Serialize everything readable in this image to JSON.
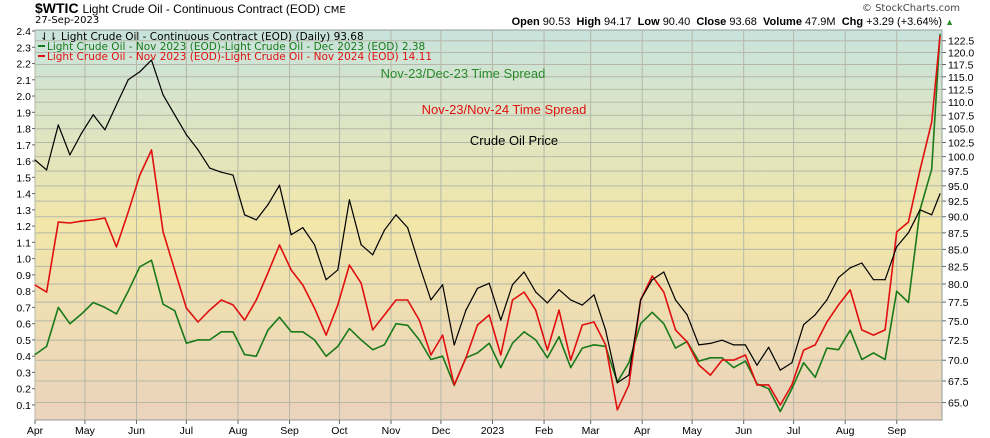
{
  "header": {
    "symbol": "$WTIC",
    "description": "Light Crude Oil - Continuous Contract (EOD)",
    "exchange": "CME",
    "date": "27-Sep-2023",
    "brand": "© StockCharts.com",
    "quote": {
      "open_label": "Open",
      "open": "90.53",
      "high_label": "High",
      "high": "94.17",
      "low_label": "Low",
      "low": "90.40",
      "close_label": "Close",
      "close": "93.68",
      "volume_label": "Volume",
      "volume": "47.9M",
      "chg_label": "Chg",
      "chg": "+3.29 (+3.64%)",
      "chg_icon": "triangle-up-icon"
    }
  },
  "legend": [
    {
      "text": "Light Crude Oil - Continuous Contract (EOD) (Daily) 93.68",
      "color": "#000000",
      "icon": "ohlc-bar-icon"
    },
    {
      "text": "Light Crude Oil - Nov 2023 (EOD)-Light Crude Oil - Dec 2023 (EOD) 2.38",
      "color": "#1a7a1a",
      "icon": "line-swatch-icon"
    },
    {
      "text": "Light Crude Oil - Nov 2023 (EOD)-Light Crude Oil - Nov 2024 (EOD) 14.11",
      "color": "#e01010",
      "icon": "line-swatch-icon"
    }
  ],
  "annotations": [
    {
      "text": "Nov-23/Dec-23 Time Spread",
      "color": "#2a8a2a"
    },
    {
      "text": "Nov-23/Nov-24 Time Spread",
      "color": "#e01010"
    },
    {
      "text": "Crude Oil Price",
      "color": "#000000"
    }
  ],
  "chart_data": {
    "type": "line",
    "xlim": [
      "2022-04-01",
      "2023-09-27"
    ],
    "x_tick_labels": [
      {
        "label": "Apr",
        "date": "2022-04-01"
      },
      {
        "label": "May",
        "date": "2022-05-01"
      },
      {
        "label": "Jun",
        "date": "2022-06-01"
      },
      {
        "label": "Jul",
        "date": "2022-07-01"
      },
      {
        "label": "Aug",
        "date": "2022-08-01"
      },
      {
        "label": "Sep",
        "date": "2022-09-01"
      },
      {
        "label": "Oct",
        "date": "2022-10-01"
      },
      {
        "label": "Nov",
        "date": "2022-11-01"
      },
      {
        "label": "Dec",
        "date": "2022-12-01"
      },
      {
        "label": "2023",
        "date": "2023-01-01",
        "bold": true
      },
      {
        "label": "Feb",
        "date": "2023-02-01"
      },
      {
        "label": "Mar",
        "date": "2023-03-01"
      },
      {
        "label": "Apr",
        "date": "2023-04-01"
      },
      {
        "label": "May",
        "date": "2023-05-01"
      },
      {
        "label": "Jun",
        "date": "2023-06-01"
      },
      {
        "label": "Jul",
        "date": "2023-07-01"
      },
      {
        "label": "Aug",
        "date": "2023-08-01"
      },
      {
        "label": "Sep",
        "date": "2023-09-01"
      }
    ],
    "left_axis": {
      "scale": "linear",
      "ylim": [
        0.0,
        2.4
      ],
      "ticks": [
        "0.1",
        "0.2",
        "0.3",
        "0.4",
        "0.5",
        "0.6",
        "0.7",
        "0.8",
        "0.9",
        "1.0",
        "1.1",
        "1.2",
        "1.3",
        "1.4",
        "1.5",
        "1.6",
        "1.7",
        "1.8",
        "1.9",
        "2.0",
        "2.1",
        "2.2",
        "2.3",
        "2.4"
      ]
    },
    "right_axis": {
      "scale": "log",
      "ylim": [
        63.0,
        124.0
      ],
      "ticks": [
        "65.0",
        "67.5",
        "70.0",
        "72.5",
        "75.0",
        "77.5",
        "80.0",
        "82.5",
        "85.0",
        "87.5",
        "90.0",
        "92.5",
        "95.0",
        "97.5",
        "100.0",
        "102.5",
        "105.0",
        "107.5",
        "110.0",
        "112.5",
        "115.0",
        "117.5",
        "120.0",
        "122.5"
      ]
    },
    "grid": true,
    "legend_position": "top-left",
    "dates": [
      "2022-04-01",
      "2022-04-08",
      "2022-04-15",
      "2022-04-22",
      "2022-04-29",
      "2022-05-06",
      "2022-05-13",
      "2022-05-20",
      "2022-05-27",
      "2022-06-03",
      "2022-06-10",
      "2022-06-17",
      "2022-06-24",
      "2022-07-01",
      "2022-07-08",
      "2022-07-15",
      "2022-07-22",
      "2022-07-29",
      "2022-08-05",
      "2022-08-12",
      "2022-08-19",
      "2022-08-26",
      "2022-09-02",
      "2022-09-09",
      "2022-09-16",
      "2022-09-23",
      "2022-09-30",
      "2022-10-07",
      "2022-10-14",
      "2022-10-21",
      "2022-10-28",
      "2022-11-04",
      "2022-11-11",
      "2022-11-18",
      "2022-11-25",
      "2022-12-02",
      "2022-12-09",
      "2022-12-16",
      "2022-12-23",
      "2022-12-30",
      "2023-01-06",
      "2023-01-13",
      "2023-01-20",
      "2023-01-27",
      "2023-02-03",
      "2023-02-10",
      "2023-02-17",
      "2023-02-24",
      "2023-03-03",
      "2023-03-10",
      "2023-03-17",
      "2023-03-24",
      "2023-03-31",
      "2023-04-07",
      "2023-04-14",
      "2023-04-21",
      "2023-04-28",
      "2023-05-05",
      "2023-05-12",
      "2023-05-19",
      "2023-05-26",
      "2023-06-02",
      "2023-06-09",
      "2023-06-16",
      "2023-06-23",
      "2023-06-30",
      "2023-07-07",
      "2023-07-14",
      "2023-07-21",
      "2023-07-28",
      "2023-08-04",
      "2023-08-11",
      "2023-08-18",
      "2023-08-25",
      "2023-09-01",
      "2023-09-08",
      "2023-09-15",
      "2023-09-22",
      "2023-09-27"
    ],
    "series": [
      {
        "name": "Light Crude Oil - Continuous Contract (EOD) (Daily)",
        "axis": "right",
        "color": "#000000",
        "values": [
          99.4,
          97.7,
          105.7,
          100.3,
          104.2,
          107.6,
          104.8,
          109.5,
          114.4,
          116.0,
          118.4,
          111.4,
          107.6,
          103.9,
          101.2,
          98.0,
          97.3,
          96.8,
          90.3,
          89.5,
          91.9,
          95.1,
          87.2,
          88.3,
          85.7,
          80.6,
          82.0,
          92.7,
          85.7,
          84.2,
          87.9,
          90.3,
          88.3,
          82.7,
          77.8,
          79.9,
          71.9,
          76.4,
          79.4,
          80.1,
          75.1,
          79.9,
          81.7,
          78.9,
          77.4,
          79.2,
          77.8,
          77.1,
          78.5,
          73.8,
          67.3,
          68.2,
          77.8,
          80.6,
          81.7,
          77.8,
          75.8,
          71.9,
          72.1,
          72.5,
          71.9,
          71.9,
          69.4,
          71.6,
          68.8,
          69.7,
          74.5,
          75.8,
          77.8,
          80.9,
          82.3,
          83.0,
          80.6,
          80.6,
          85.4,
          87.5,
          91.1,
          90.3,
          93.68
        ]
      },
      {
        "name": "Light Crude Oil - Nov 2023 (EOD)-Light Crude Oil - Dec 2023 (EOD)",
        "axis": "left",
        "color": "#1a7a1a",
        "values": [
          0.41,
          0.46,
          0.7,
          0.6,
          0.66,
          0.73,
          0.7,
          0.66,
          0.8,
          0.95,
          0.99,
          0.72,
          0.68,
          0.48,
          0.5,
          0.5,
          0.55,
          0.55,
          0.41,
          0.4,
          0.56,
          0.64,
          0.55,
          0.55,
          0.5,
          0.4,
          0.46,
          0.57,
          0.5,
          0.44,
          0.47,
          0.6,
          0.59,
          0.5,
          0.38,
          0.4,
          0.22,
          0.39,
          0.42,
          0.48,
          0.33,
          0.48,
          0.55,
          0.5,
          0.39,
          0.52,
          0.33,
          0.45,
          0.47,
          0.46,
          0.24,
          0.36,
          0.6,
          0.67,
          0.6,
          0.45,
          0.49,
          0.37,
          0.39,
          0.39,
          0.33,
          0.37,
          0.23,
          0.2,
          0.06,
          0.2,
          0.36,
          0.27,
          0.45,
          0.44,
          0.56,
          0.38,
          0.42,
          0.38,
          0.8,
          0.73,
          1.3,
          1.55,
          2.38
        ]
      },
      {
        "name": "Light Crude Oil - Nov 2023 (EOD)-Light Crude Oil - Nov 2024 (EOD)",
        "axis": "overlay",
        "color": "#e01010",
        "values": [
          4.96,
          4.7,
          7.27,
          7.24,
          7.31,
          7.35,
          7.42,
          6.36,
          7.64,
          9.0,
          9.92,
          6.91,
          5.51,
          4.11,
          3.6,
          4.04,
          4.41,
          4.23,
          3.67,
          4.41,
          5.4,
          6.43,
          5.51,
          4.96,
          4.11,
          3.12,
          4.23,
          5.69,
          5.03,
          3.31,
          3.86,
          4.41,
          4.41,
          3.67,
          2.39,
          3.12,
          1.29,
          2.28,
          3.49,
          3.86,
          2.39,
          4.41,
          4.7,
          4.04,
          2.57,
          4.04,
          2.2,
          3.49,
          3.6,
          2.76,
          0.37,
          1.29,
          4.41,
          5.29,
          4.7,
          3.31,
          2.87,
          2.02,
          1.65,
          2.2,
          2.2,
          2.39,
          1.29,
          1.29,
          0.55,
          1.29,
          2.57,
          2.76,
          3.6,
          4.23,
          4.78,
          3.31,
          3.12,
          3.31,
          6.91,
          7.27,
          9.19,
          10.95,
          14.11
        ]
      }
    ]
  }
}
